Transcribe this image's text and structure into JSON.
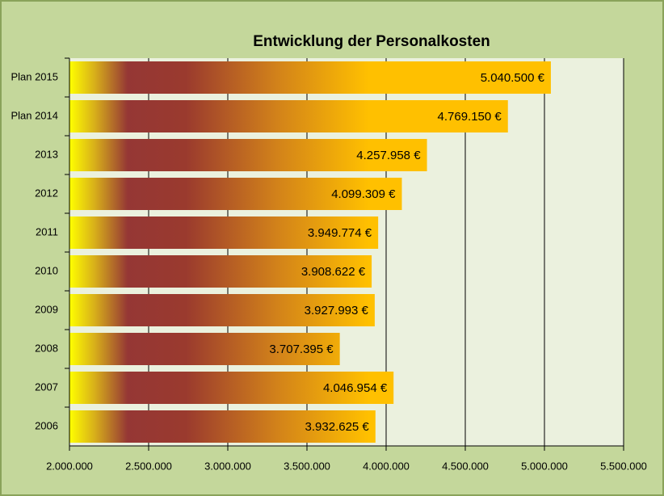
{
  "chart_data": {
    "type": "bar",
    "orientation": "horizontal",
    "title": "Entwicklung der Personalkosten",
    "categories": [
      "Plan 2015",
      "Plan 2014",
      "2013",
      "2012",
      "2011",
      "2010",
      "2009",
      "2008",
      "2007",
      "2006"
    ],
    "values": [
      5040500,
      4769150,
      4257958,
      4099309,
      3949774,
      3908622,
      3927993,
      3707395,
      4046954,
      3932625
    ],
    "value_labels": [
      "5.040.500 €",
      "4.769.150 €",
      "4.257.958 €",
      "4.099.309 €",
      "3.949.774 €",
      "3.908.622 €",
      "3.927.993 €",
      "3.707.395 €",
      "4.046.954 €",
      "3.932.625 €"
    ],
    "xlim": [
      2000000,
      5500000
    ],
    "xticks": [
      {
        "value": 2000000,
        "label": "2.000.000"
      },
      {
        "value": 2500000,
        "label": "2.500.000"
      },
      {
        "value": 3000000,
        "label": "3.000.000"
      },
      {
        "value": 3500000,
        "label": "3.500.000"
      },
      {
        "value": 4000000,
        "label": "4.000.000"
      },
      {
        "value": 4500000,
        "label": "4.500.000"
      },
      {
        "value": 5000000,
        "label": "5.000.000"
      },
      {
        "value": 5500000,
        "label": "5.500.000"
      }
    ],
    "grid": true
  }
}
